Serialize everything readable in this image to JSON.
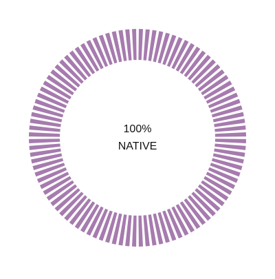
{
  "chart_data": {
    "type": "gauge",
    "categories": [
      "NATIVE"
    ],
    "values": [
      100
    ],
    "value_labels": [
      "100%"
    ],
    "ylim": [
      0,
      100
    ],
    "color": "#a67bae"
  }
}
